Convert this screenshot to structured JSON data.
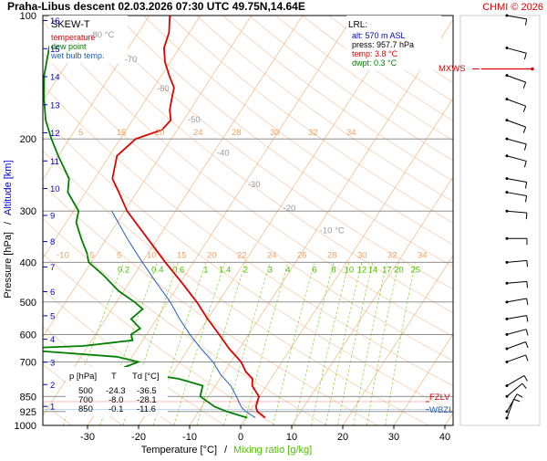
{
  "header": {
    "title": "Praha-Libus   descent   02.03.2026 07:30 UTC  49.75N,14.64E",
    "copyright": "CHMI © 2026"
  },
  "legend": {
    "title": "SKEW-T",
    "items": [
      {
        "label": "temperature",
        "color": "#e00000"
      },
      {
        "label": "dew point",
        "color": "#008000"
      },
      {
        "label": "wet bulb temp.",
        "color": "#2060c0"
      }
    ]
  },
  "station_box": {
    "title": "LRL:",
    "lines": [
      {
        "text": "alt: 570 m ASL",
        "color": "#0000cc"
      },
      {
        "text": "press: 957.7 hPa",
        "color": "#000000"
      },
      {
        "text": "temp: 3.8 °C",
        "color": "#e00000"
      },
      {
        "text": "dwpt: 0.3 °C",
        "color": "#008000"
      }
    ]
  },
  "levels_table": {
    "headers": [
      "p [hPa]",
      "T",
      "Td [°C]"
    ],
    "rows": [
      [
        "500",
        "-24.3",
        "-36.5"
      ],
      [
        "700",
        "-8.0",
        "-28.1"
      ],
      [
        "850",
        "-0.1",
        "-11.6"
      ]
    ]
  },
  "markers": {
    "mxws": "MXWS",
    "fzlv": "FZLV",
    "wbzl": "WBZL"
  },
  "axes": {
    "xlabel_temp": "Temperature [°C]",
    "xlabel_sep": "/",
    "xlabel_mix": "Mixing ratio [g/kg]",
    "ylabel_pressure": "Pressure [hPa]",
    "ylabel_sep": "/",
    "ylabel_alt": "Altitude [km]",
    "x_ticks": [
      "-30",
      "-20",
      "-10",
      "0",
      "10",
      "20",
      "30",
      "40"
    ],
    "p_ticks": [
      "100",
      "200",
      "300",
      "400",
      "500",
      "600",
      "700",
      "850",
      "925",
      "1000"
    ],
    "km_ticks": [
      "1",
      "2",
      "3",
      "4",
      "5",
      "6",
      "7",
      "8",
      "9",
      "10",
      "11",
      "12",
      "13",
      "14",
      "15",
      "16"
    ],
    "mixing_labels": [
      "0.2",
      "0.4",
      "0.6",
      "1",
      "1.4",
      "2",
      "3",
      "4",
      "6",
      "8",
      "10",
      "12",
      "14",
      "17",
      "20",
      "25"
    ],
    "isotherm_labels": [
      "-80 °C",
      "-70",
      "-60",
      "-50",
      "-40",
      "-30",
      "-20",
      "-10 °C"
    ],
    "theta_labels_top": [
      "5",
      "15",
      "20",
      "24",
      "28",
      "30",
      "32",
      "34"
    ],
    "theta_labels_mid": [
      "-10",
      "-5",
      "5",
      "10",
      "15",
      "20",
      "22",
      "24",
      "26",
      "28",
      "30",
      "32",
      "34"
    ]
  },
  "colors": {
    "temperature": "#e00000",
    "dewpoint": "#008000",
    "wetbulb": "#2060c0",
    "isobar": "#808080",
    "isotherm": "#f0c090",
    "mixing": "#90d040",
    "adiabat": "#f0b080"
  },
  "chart_data": {
    "type": "line",
    "title": "SKEW-T",
    "xlabel": "Temperature [°C]",
    "ylabel": "Pressure [hPa]",
    "x_range": [
      -35,
      45
    ],
    "y_range_hpa": [
      1000,
      100
    ],
    "y_scale": "log",
    "series": [
      {
        "name": "temperature",
        "color": "#e00000",
        "points": [
          {
            "p": 957.7,
            "t": 3.8
          },
          {
            "p": 925,
            "t": 1.5
          },
          {
            "p": 900,
            "t": 0.6
          },
          {
            "p": 850,
            "t": -0.1
          },
          {
            "p": 800,
            "t": -2.8
          },
          {
            "p": 770,
            "t": -3.6
          },
          {
            "p": 740,
            "t": -5.8
          },
          {
            "p": 700,
            "t": -8.0
          },
          {
            "p": 650,
            "t": -12.0
          },
          {
            "p": 600,
            "t": -15.8
          },
          {
            "p": 550,
            "t": -20.0
          },
          {
            "p": 500,
            "t": -24.3
          },
          {
            "p": 450,
            "t": -29.5
          },
          {
            "p": 400,
            "t": -35.5
          },
          {
            "p": 350,
            "t": -42.0
          },
          {
            "p": 300,
            "t": -49.5
          },
          {
            "p": 270,
            "t": -53.5
          },
          {
            "p": 250,
            "t": -56.5
          },
          {
            "p": 220,
            "t": -58.5
          },
          {
            "p": 200,
            "t": -57.0
          },
          {
            "p": 190,
            "t": -53.0
          },
          {
            "p": 180,
            "t": -52.5
          },
          {
            "p": 170,
            "t": -54.0
          },
          {
            "p": 160,
            "t": -55.0
          },
          {
            "p": 150,
            "t": -56.0
          },
          {
            "p": 140,
            "t": -58.5
          },
          {
            "p": 130,
            "t": -61.0
          },
          {
            "p": 120,
            "t": -63.0
          },
          {
            "p": 110,
            "t": -64.0
          },
          {
            "p": 100,
            "t": -66.0
          }
        ]
      },
      {
        "name": "dew point",
        "color": "#008000",
        "points": [
          {
            "p": 957.7,
            "t": 0.3
          },
          {
            "p": 925,
            "t": -4.5
          },
          {
            "p": 900,
            "t": -7.5
          },
          {
            "p": 850,
            "t": -11.6
          },
          {
            "p": 800,
            "t": -12.5
          },
          {
            "p": 770,
            "t": -18.0
          },
          {
            "p": 740,
            "t": -28.0
          },
          {
            "p": 720,
            "t": -30.0
          },
          {
            "p": 700,
            "t": -28.1
          },
          {
            "p": 680,
            "t": -33.0
          },
          {
            "p": 650,
            "t": -55.0
          },
          {
            "p": 640,
            "t": -41.0
          },
          {
            "p": 620,
            "t": -32.0
          },
          {
            "p": 600,
            "t": -33.0
          },
          {
            "p": 580,
            "t": -32.0
          },
          {
            "p": 550,
            "t": -35.0
          },
          {
            "p": 520,
            "t": -34.0
          },
          {
            "p": 500,
            "t": -36.5
          },
          {
            "p": 470,
            "t": -41.0
          },
          {
            "p": 430,
            "t": -46.0
          },
          {
            "p": 400,
            "t": -50.5
          },
          {
            "p": 380,
            "t": -52.0
          },
          {
            "p": 350,
            "t": -55.0
          },
          {
            "p": 320,
            "t": -58.0
          },
          {
            "p": 300,
            "t": -59.0
          },
          {
            "p": 270,
            "t": -63.5
          },
          {
            "p": 250,
            "t": -65.0
          },
          {
            "p": 220,
            "t": -70.0
          },
          {
            "p": 200,
            "t": -73.5
          },
          {
            "p": 180,
            "t": -77.0
          },
          {
            "p": 160,
            "t": -80.0
          },
          {
            "p": 140,
            "t": -83.0
          },
          {
            "p": 120,
            "t": -85.5
          },
          {
            "p": 100,
            "t": -88.0
          }
        ]
      },
      {
        "name": "wet bulb temp.",
        "color": "#2060c0",
        "points": [
          {
            "p": 957.7,
            "t": 1.9
          },
          {
            "p": 925,
            "t": -0.8
          },
          {
            "p": 900,
            "t": -2.3
          },
          {
            "p": 850,
            "t": -4.5
          },
          {
            "p": 800,
            "t": -7.0
          },
          {
            "p": 750,
            "t": -10.5
          },
          {
            "p": 700,
            "t": -13.5
          },
          {
            "p": 650,
            "t": -17.5
          },
          {
            "p": 600,
            "t": -21.5
          },
          {
            "p": 550,
            "t": -25.5
          },
          {
            "p": 500,
            "t": -29.5
          },
          {
            "p": 450,
            "t": -34.5
          },
          {
            "p": 400,
            "t": -40.0
          },
          {
            "p": 350,
            "t": -46.0
          },
          {
            "p": 300,
            "t": -52.5
          }
        ]
      }
    ],
    "levels": [
      {
        "name": "MXWS",
        "p": 135
      },
      {
        "name": "FZLV",
        "p": 875
      },
      {
        "name": "WBZL",
        "p": 915
      }
    ]
  }
}
